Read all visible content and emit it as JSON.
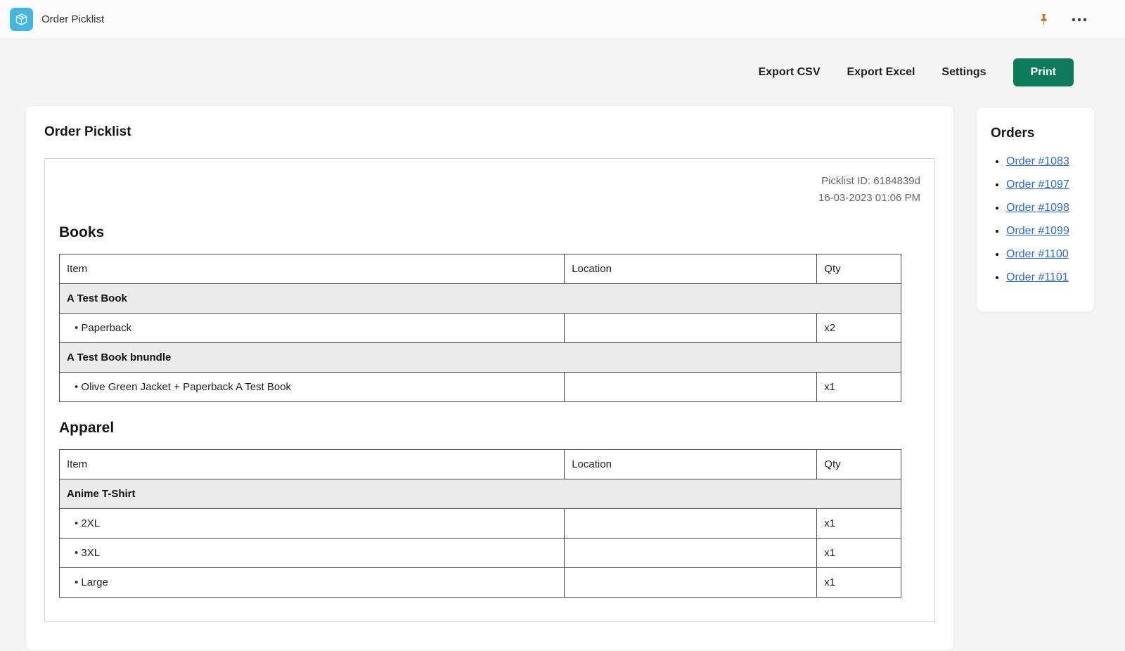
{
  "topbar": {
    "app_title": "Order Picklist",
    "icons": {
      "app_logo": "package-box-icon",
      "pin": "pushpin-icon",
      "menu": "ellipsis-icon"
    }
  },
  "toolbar": {
    "export_csv": "Export CSV",
    "export_excel": "Export Excel",
    "settings": "Settings",
    "print": "Print"
  },
  "picklist": {
    "title": "Order Picklist",
    "meta": {
      "id_line": "Picklist ID: 6184839d",
      "date_line": "16-03-2023 01:06 PM"
    },
    "columns": [
      "Item",
      "Location",
      "Qty"
    ],
    "sections": [
      {
        "name": "Books",
        "groups": [
          {
            "product": "A Test Book",
            "variants": [
              {
                "item": "Paperback",
                "location": "",
                "qty": "x2"
              }
            ]
          },
          {
            "product": "A Test Book bnundle",
            "variants": [
              {
                "item": "Olive Green Jacket + Paperback A Test Book",
                "location": "",
                "qty": "x1"
              }
            ]
          }
        ]
      },
      {
        "name": "Apparel",
        "groups": [
          {
            "product": "Anime T-Shirt",
            "variants": [
              {
                "item": "2XL",
                "location": "",
                "qty": "x1"
              },
              {
                "item": "3XL",
                "location": "",
                "qty": "x1"
              },
              {
                "item": "Large",
                "location": "",
                "qty": "x1"
              }
            ]
          }
        ]
      }
    ]
  },
  "orders_panel": {
    "title": "Orders",
    "orders": [
      {
        "label": "Order #1083"
      },
      {
        "label": "Order #1097"
      },
      {
        "label": "Order #1098"
      },
      {
        "label": "Order #1099"
      },
      {
        "label": "Order #1100"
      },
      {
        "label": "Order #1101"
      }
    ]
  },
  "colors": {
    "accent_green": "#0d7a5a",
    "link_blue": "#2e6bd0",
    "app_icon_cyan": "#41b7e2",
    "pin_orange": "#c87d1c",
    "table_border_gray": "#4d4d4d",
    "group_row_gray": "#ebebeb"
  }
}
